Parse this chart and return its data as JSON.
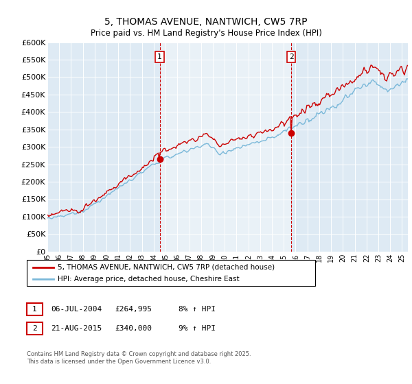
{
  "title": "5, THOMAS AVENUE, NANTWICH, CW5 7RP",
  "subtitle": "Price paid vs. HM Land Registry's House Price Index (HPI)",
  "legend_line1": "5, THOMAS AVENUE, NANTWICH, CW5 7RP (detached house)",
  "legend_line2": "HPI: Average price, detached house, Cheshire East",
  "footnote": "Contains HM Land Registry data © Crown copyright and database right 2025.\nThis data is licensed under the Open Government Licence v3.0.",
  "annotation1": {
    "label": "1",
    "date": "06-JUL-2004",
    "price": "£264,995",
    "change": "8% ↑ HPI"
  },
  "annotation2": {
    "label": "2",
    "date": "21-AUG-2015",
    "price": "£340,000",
    "change": "9% ↑ HPI"
  },
  "hpi_color": "#7ab8d9",
  "price_color": "#cc0000",
  "annotation_color": "#cc0000",
  "background_color": "#deeaf4",
  "highlight_color": "#c8ddf0",
  "ylim": [
    0,
    600000
  ],
  "yticks": [
    0,
    50000,
    100000,
    150000,
    200000,
    250000,
    300000,
    350000,
    400000,
    450000,
    500000,
    550000,
    600000
  ],
  "sale1_t": 2004.5,
  "sale2_t": 2015.625,
  "sale1_val": 264995,
  "sale2_val": 340000,
  "start_year": 1995,
  "end_year": 2025
}
